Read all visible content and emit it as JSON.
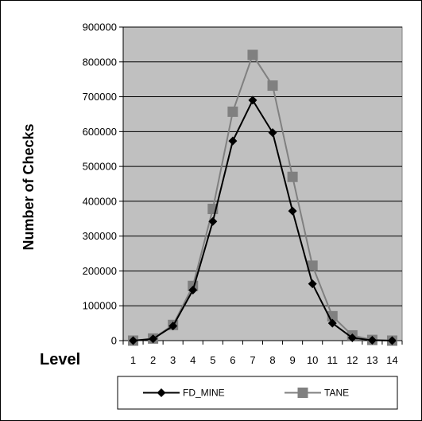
{
  "chart_data": {
    "type": "line",
    "title": "",
    "xlabel": "Level",
    "ylabel": "Number of Checks",
    "x": [
      1,
      2,
      3,
      4,
      5,
      6,
      7,
      8,
      9,
      10,
      11,
      12,
      13,
      14
    ],
    "x_tick_labels": [
      "1",
      "2",
      "3",
      "4",
      "5",
      "6",
      "7",
      "8",
      "9",
      "10",
      "11",
      "12",
      "13",
      "14"
    ],
    "y_tick_labels": [
      "0",
      "100000",
      "200000",
      "300000",
      "400000",
      "500000",
      "600000",
      "700000",
      "800000",
      "900000"
    ],
    "ylim": [
      0,
      900000
    ],
    "grid": "horizontal",
    "legend_position": "bottom",
    "series": [
      {
        "name": "FD_MINE",
        "marker": "diamond",
        "color": "#000000",
        "values": [
          0,
          5000,
          42000,
          145000,
          342000,
          573000,
          690000,
          597000,
          372000,
          163000,
          50000,
          8000,
          1000,
          0
        ]
      },
      {
        "name": "TANE",
        "marker": "square",
        "color": "#808080",
        "values": [
          0,
          6000,
          45000,
          157000,
          378000,
          657000,
          820000,
          732000,
          470000,
          215000,
          70000,
          15000,
          2000,
          0
        ]
      }
    ],
    "plot_background": "#c0c0c0"
  }
}
